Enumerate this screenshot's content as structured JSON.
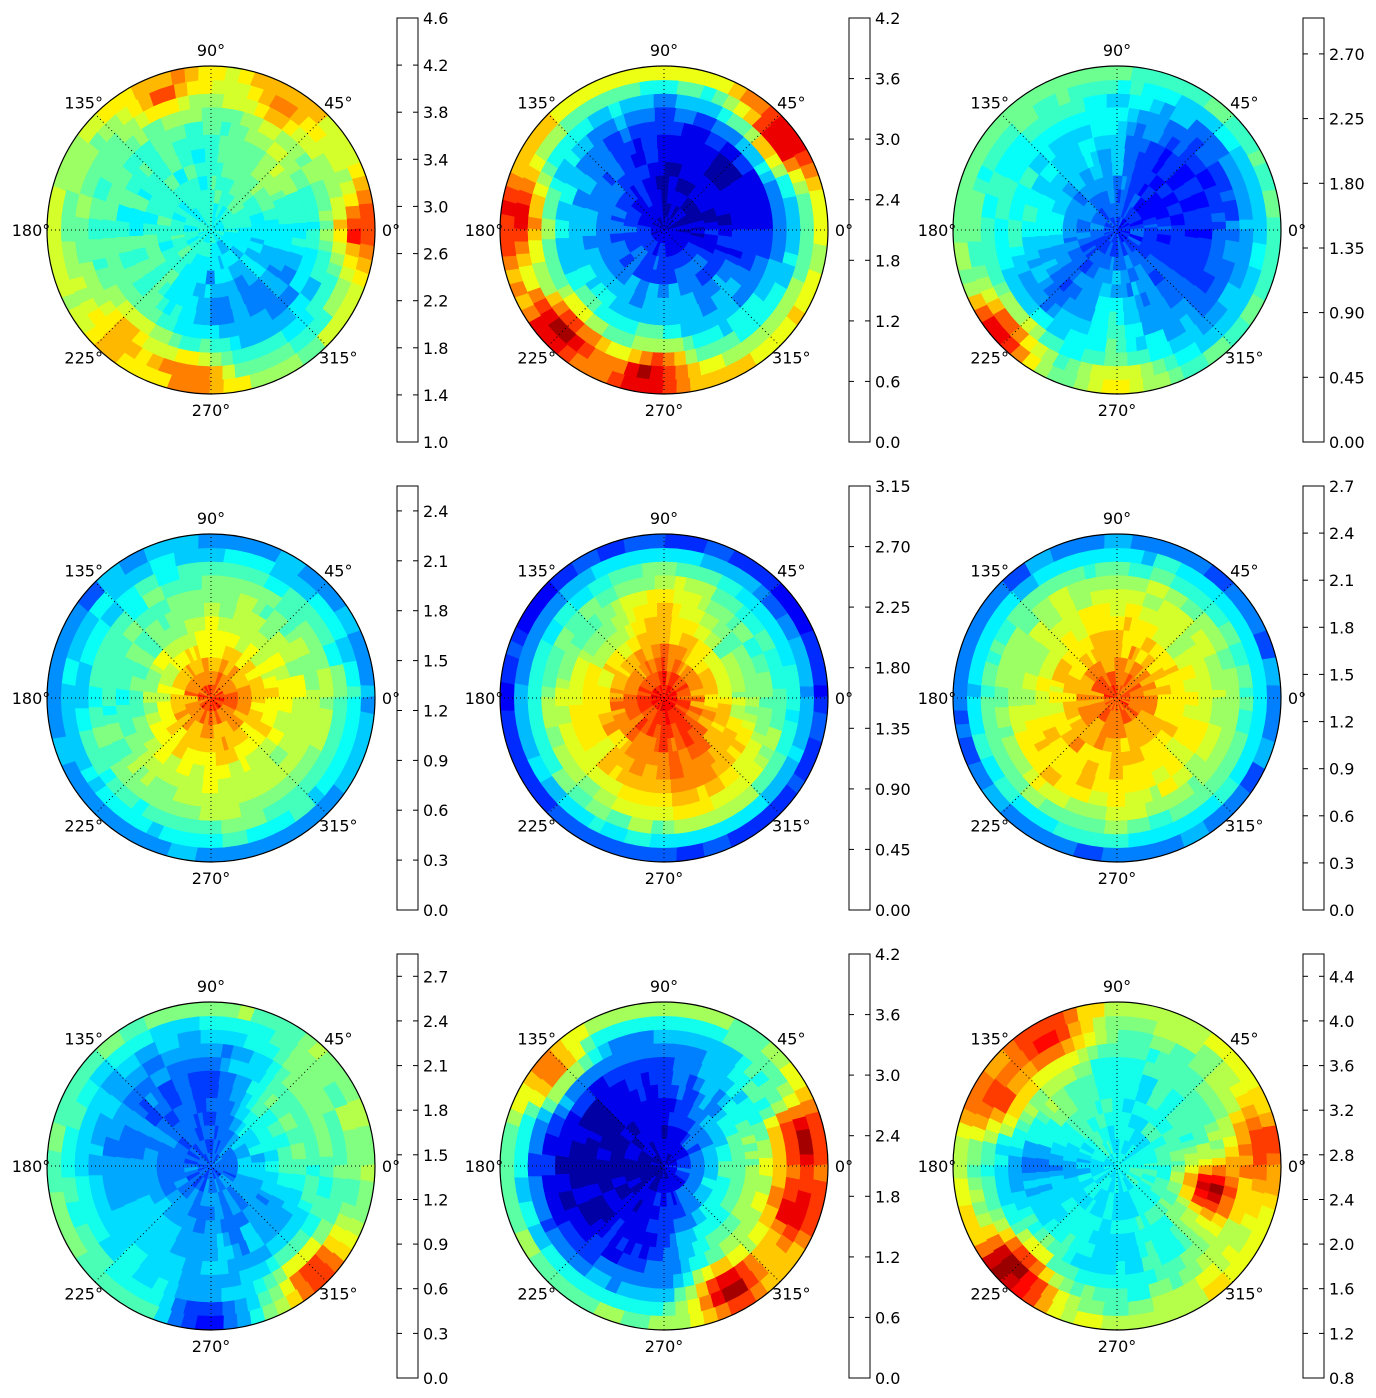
{
  "figure": {
    "panels": 9,
    "grid": "3x3"
  },
  "angle_labels": [
    "0°",
    "45°",
    "90°",
    "135°",
    "180°",
    "225°",
    "270°",
    "315°"
  ],
  "chart_data": [
    {
      "type": "heatmap",
      "subtype": "polar-contourf",
      "colormap": "jet",
      "color_range": [
        1.0,
        4.6
      ],
      "colorbar_ticks": [
        "1.0",
        "1.4",
        "1.8",
        "2.2",
        "2.6",
        "3.0",
        "3.4",
        "3.8",
        "4.2",
        "4.6"
      ],
      "levels": [
        1.0,
        1.2,
        1.4,
        1.6,
        1.8,
        2.0,
        2.2,
        2.4,
        2.6,
        2.8,
        3.0,
        3.2,
        3.4,
        3.6,
        3.8,
        4.0,
        4.2,
        4.4,
        4.6
      ],
      "center": 2.4,
      "edge": 3.1,
      "sectors": [
        2.3,
        2.9,
        2.5,
        2.6,
        2.5,
        2.7,
        1.9,
        2.0
      ],
      "hot_spots": [
        {
          "angle": 0,
          "r": 0.92,
          "value": 4.0
        },
        {
          "angle": 60,
          "r": 0.9,
          "value": 3.6
        },
        {
          "angle": 110,
          "r": 0.9,
          "value": 3.7
        },
        {
          "angle": 230,
          "r": 0.85,
          "value": 3.6
        },
        {
          "angle": 262,
          "r": 0.9,
          "value": 3.8
        }
      ],
      "grid": true
    },
    {
      "type": "heatmap",
      "subtype": "polar-contourf",
      "colormap": "jet",
      "color_range": [
        0.0,
        4.2
      ],
      "colorbar_ticks": [
        "0.0",
        "0.6",
        "1.2",
        "1.8",
        "2.4",
        "3.0",
        "3.6",
        "4.2"
      ],
      "levels": [
        0.0,
        0.3,
        0.6,
        0.9,
        1.2,
        1.5,
        1.8,
        2.1,
        2.4,
        2.7,
        3.0,
        3.3,
        3.6,
        3.9,
        4.2
      ],
      "center": 0.3,
      "edge": 2.9,
      "sectors": [
        0.5,
        0.3,
        0.4,
        1.0,
        1.4,
        1.5,
        1.4,
        1.2
      ],
      "hot_spots": [
        {
          "angle": 40,
          "r": 0.92,
          "value": 4.0
        },
        {
          "angle": 175,
          "r": 0.9,
          "value": 3.7
        },
        {
          "angle": 225,
          "r": 0.88,
          "value": 4.0
        },
        {
          "angle": 265,
          "r": 0.9,
          "value": 3.9
        }
      ],
      "grid": true
    },
    {
      "type": "heatmap",
      "subtype": "polar-contourf",
      "colormap": "jet",
      "color_range": [
        0.0,
        2.95
      ],
      "colorbar_ticks": [
        "0.00",
        "0.45",
        "0.90",
        "1.35",
        "1.80",
        "2.25",
        "2.70"
      ],
      "levels": [
        0.0,
        0.15,
        0.3,
        0.45,
        0.6,
        0.75,
        0.9,
        1.05,
        1.2,
        1.35,
        1.5,
        1.65,
        1.8,
        1.95,
        2.1,
        2.25,
        2.4,
        2.55,
        2.7,
        2.85
      ],
      "center": 0.5,
      "edge": 1.45,
      "sectors": [
        0.55,
        0.35,
        0.95,
        1.1,
        1.15,
        0.7,
        1.1,
        0.6
      ],
      "hot_spots": [
        {
          "angle": 222,
          "r": 0.95,
          "value": 2.6
        },
        {
          "angle": 270,
          "r": 0.95,
          "value": 1.9
        }
      ],
      "grid": true
    },
    {
      "type": "heatmap",
      "subtype": "polar-contourf",
      "colormap": "jet",
      "color_range": [
        0.0,
        2.55
      ],
      "colorbar_ticks": [
        "0.0",
        "0.3",
        "0.6",
        "0.9",
        "1.2",
        "1.5",
        "1.8",
        "2.1",
        "2.4"
      ],
      "levels": [
        0.0,
        0.15,
        0.3,
        0.45,
        0.6,
        0.75,
        0.9,
        1.05,
        1.2,
        1.35,
        1.5,
        1.65,
        1.8,
        1.95,
        2.1,
        2.25,
        2.4,
        2.55
      ],
      "center": 2.1,
      "edge": 0.6,
      "sectors": [
        1.5,
        1.3,
        1.4,
        1.2,
        1.1,
        1.4,
        1.5,
        1.4
      ],
      "hot_spots": [],
      "grid": true
    },
    {
      "type": "heatmap",
      "subtype": "polar-contourf",
      "colormap": "jet",
      "color_range": [
        0.0,
        3.15
      ],
      "colorbar_ticks": [
        "0.00",
        "0.45",
        "0.90",
        "1.35",
        "1.80",
        "2.25",
        "2.70",
        "3.15"
      ],
      "levels": [
        0.0,
        0.15,
        0.3,
        0.45,
        0.6,
        0.75,
        0.9,
        1.05,
        1.2,
        1.35,
        1.5,
        1.65,
        1.8,
        1.95,
        2.1,
        2.25,
        2.4,
        2.55,
        2.7,
        2.85,
        3.0,
        3.15
      ],
      "center": 2.8,
      "edge": 0.3,
      "sectors": [
        1.6,
        1.5,
        2.1,
        1.6,
        1.9,
        2.0,
        2.3,
        2.2
      ],
      "hot_spots": [],
      "grid": true
    },
    {
      "type": "heatmap",
      "subtype": "polar-contourf",
      "colormap": "jet",
      "color_range": [
        0.0,
        2.7
      ],
      "colorbar_ticks": [
        "0.0",
        "0.3",
        "0.6",
        "0.9",
        "1.2",
        "1.5",
        "1.8",
        "2.1",
        "2.4",
        "2.7"
      ],
      "levels": [
        0.0,
        0.15,
        0.3,
        0.45,
        0.6,
        0.75,
        0.9,
        1.05,
        1.2,
        1.35,
        1.5,
        1.65,
        1.8,
        1.95,
        2.1,
        2.25,
        2.4,
        2.55,
        2.7
      ],
      "center": 2.2,
      "edge": 0.5,
      "sectors": [
        1.6,
        1.5,
        1.7,
        1.6,
        1.5,
        1.8,
        1.7,
        1.6
      ],
      "hot_spots": [],
      "grid": true
    },
    {
      "type": "heatmap",
      "subtype": "polar-contourf",
      "colormap": "jet",
      "color_range": [
        0.0,
        2.85
      ],
      "colorbar_ticks": [
        "0.0",
        "0.3",
        "0.6",
        "0.9",
        "1.2",
        "1.5",
        "1.8",
        "2.1",
        "2.4",
        "2.7"
      ],
      "levels": [
        0.0,
        0.15,
        0.3,
        0.45,
        0.6,
        0.75,
        0.9,
        1.05,
        1.2,
        1.35,
        1.5,
        1.65,
        1.8,
        1.95,
        2.1,
        2.25,
        2.4,
        2.55,
        2.7,
        2.85
      ],
      "center": 0.6,
      "edge": 1.5,
      "sectors": [
        1.3,
        1.3,
        0.6,
        0.7,
        0.8,
        0.9,
        0.9,
        0.8
      ],
      "hot_spots": [
        {
          "angle": 315,
          "r": 0.92,
          "value": 2.4
        },
        {
          "angle": 270,
          "r": 0.95,
          "value": 0.4
        }
      ],
      "grid": true
    },
    {
      "type": "heatmap",
      "subtype": "polar-contourf",
      "colormap": "jet",
      "color_range": [
        0.0,
        4.2
      ],
      "colorbar_ticks": [
        "0.0",
        "0.6",
        "1.2",
        "1.8",
        "2.4",
        "3.0",
        "3.6",
        "4.2"
      ],
      "levels": [
        0.0,
        0.3,
        0.6,
        0.9,
        1.2,
        1.5,
        1.8,
        2.1,
        2.4,
        2.7,
        3.0,
        3.3,
        3.6,
        3.9,
        4.2
      ],
      "center": 0.3,
      "edge": 2.4,
      "sectors": [
        2.2,
        1.5,
        0.6,
        0.4,
        0.2,
        0.4,
        0.8,
        2.0
      ],
      "hot_spots": [
        {
          "angle": 10,
          "r": 0.88,
          "value": 4.0
        },
        {
          "angle": 340,
          "r": 0.85,
          "value": 3.8
        },
        {
          "angle": 140,
          "r": 0.92,
          "value": 3.2
        },
        {
          "angle": 300,
          "r": 0.85,
          "value": 3.9
        }
      ],
      "grid": true
    },
    {
      "type": "heatmap",
      "subtype": "polar-contourf",
      "colormap": "jet",
      "color_range": [
        0.8,
        4.6
      ],
      "colorbar_ticks": [
        "0.8",
        "1.2",
        "1.6",
        "2.0",
        "2.4",
        "2.8",
        "3.2",
        "3.6",
        "4.0",
        "4.4"
      ],
      "levels": [
        0.8,
        1.0,
        1.2,
        1.4,
        1.6,
        1.8,
        2.0,
        2.2,
        2.4,
        2.6,
        2.8,
        3.0,
        3.2,
        3.4,
        3.6,
        3.8,
        4.0,
        4.2,
        4.4,
        4.6
      ],
      "center": 2.2,
      "edge": 3.2,
      "sectors": [
        2.6,
        2.4,
        2.2,
        2.7,
        1.8,
        2.3,
        2.1,
        2.5
      ],
      "hot_spots": [
        {
          "angle": 120,
          "r": 0.88,
          "value": 4.1
        },
        {
          "angle": 150,
          "r": 0.85,
          "value": 3.9
        },
        {
          "angle": 345,
          "r": 0.6,
          "value": 4.4
        },
        {
          "angle": 225,
          "r": 0.9,
          "value": 4.5
        },
        {
          "angle": 10,
          "r": 0.88,
          "value": 4.0
        }
      ],
      "grid": true
    }
  ]
}
